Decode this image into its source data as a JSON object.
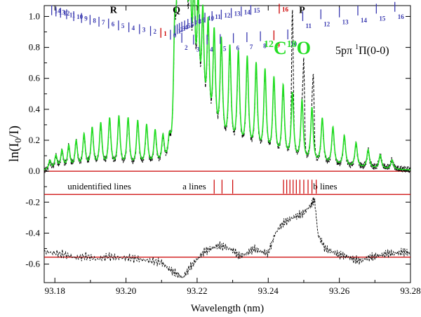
{
  "chart_data": {
    "type": "line",
    "title": "12C18O 5pπ 1Π(0-0)",
    "title_parts": {
      "isotope_c_mass": "12",
      "isotope_c": "C",
      "isotope_o_mass": "18",
      "isotope_o": "O",
      "transition": "5pπ",
      "multiplicity": "1",
      "state": "Π(0-0)"
    },
    "xlabel": "Wavelength (nm)",
    "ylabel_parts": {
      "ln": "ln(I",
      "sub0": "0",
      "slash": "/I)"
    },
    "xlim": [
      93.177,
      93.28
    ],
    "ylim": [
      -0.72,
      1.07
    ],
    "x_ticks": [
      93.18,
      93.2,
      93.22,
      93.24,
      93.26,
      93.28
    ],
    "x_tick_labels": [
      "93.18",
      "93.20",
      "93.22",
      "93.24",
      "93.26",
      "93.28"
    ],
    "y_ticks": [
      -0.6,
      -0.4,
      -0.2,
      0.0,
      0.2,
      0.4,
      0.6,
      0.8,
      1.0
    ],
    "y_tick_labels": [
      "-0.6",
      "-0.4",
      "-0.2",
      "0.0",
      "0.2",
      "0.4",
      "0.6",
      "0.8",
      "1.0"
    ],
    "reference_lines": [
      {
        "name": "zero",
        "y": 0.0,
        "color": "#cc0000"
      },
      {
        "name": "residual-baseline-top",
        "y": -0.15,
        "color": "#cc0000"
      },
      {
        "name": "residual-baseline",
        "y": -0.555,
        "color": "#cc0000"
      }
    ],
    "branches": [
      {
        "label": "R",
        "x": 93.1965,
        "y": 1.045
      },
      {
        "label": "Q",
        "x": 93.2142,
        "y": 1.045
      },
      {
        "label": "P",
        "x": 93.2495,
        "y": 1.045
      }
    ],
    "r_branch_ticks": [
      {
        "J": "14",
        "x": 93.1791,
        "y": 1.04,
        "color": "#3a3ab0"
      },
      {
        "J": "13",
        "x": 93.1803,
        "y": 1.032,
        "color": "#3a3ab0"
      },
      {
        "J": "12",
        "x": 93.1816,
        "y": 1.024,
        "color": "#3a3ab0"
      },
      {
        "J": "11",
        "x": 93.1833,
        "y": 1.014,
        "color": "#3a3ab0"
      },
      {
        "J": "10",
        "x": 93.1853,
        "y": 1.002,
        "color": "#3a3ab0"
      },
      {
        "J": "9",
        "x": 93.1875,
        "y": 0.99,
        "color": "#3a3ab0"
      },
      {
        "J": "8",
        "x": 93.1899,
        "y": 0.978,
        "color": "#3a3ab0"
      },
      {
        "J": "7",
        "x": 93.1924,
        "y": 0.966,
        "color": "#3a3ab0"
      },
      {
        "J": "6",
        "x": 93.1951,
        "y": 0.954,
        "color": "#3a3ab0"
      },
      {
        "J": "5",
        "x": 93.1979,
        "y": 0.942,
        "color": "#3a3ab0"
      },
      {
        "J": "4",
        "x": 93.2008,
        "y": 0.93,
        "color": "#3a3ab0"
      },
      {
        "J": "3",
        "x": 93.2038,
        "y": 0.918,
        "color": "#3a3ab0"
      },
      {
        "J": "2",
        "x": 93.2069,
        "y": 0.906,
        "color": "#3a3ab0"
      },
      {
        "J": "1",
        "x": 93.2098,
        "y": 0.894,
        "color": "#cc0000"
      },
      {
        "J": "0",
        "x": 93.2125,
        "y": 0.882,
        "color": "#3a3ab0"
      }
    ],
    "q_branch_ticks": [
      {
        "J": "1",
        "x": 93.2138,
        "y": 0.91,
        "color": "#3a3ab0"
      },
      {
        "J": "2",
        "x": 93.2144,
        "y": 0.918,
        "color": "#3a3ab0"
      },
      {
        "J": "3",
        "x": 93.215,
        "y": 0.926,
        "color": "#3a3ab0"
      },
      {
        "J": "4",
        "x": 93.2157,
        "y": 0.934,
        "color": "#3a3ab0"
      },
      {
        "J": "5",
        "x": 93.2165,
        "y": 0.942,
        "color": "#3a3ab0"
      },
      {
        "J": "6",
        "x": 93.2174,
        "y": 0.952,
        "color": "#3a3ab0"
      },
      {
        "J": "7",
        "x": 93.2184,
        "y": 0.962,
        "color": "#3a3ab0"
      },
      {
        "J": "8",
        "x": 93.2195,
        "y": 0.972,
        "color": "#3a3ab0"
      },
      {
        "J": "9",
        "x": 93.2207,
        "y": 0.982,
        "color": "#3a3ab0"
      },
      {
        "J": "10",
        "x": 93.2222,
        "y": 0.992,
        "color": "#3a3ab0"
      },
      {
        "J": "11",
        "x": 93.2242,
        "y": 1.002,
        "color": "#3a3ab0"
      },
      {
        "J": "12",
        "x": 93.2268,
        "y": 1.012,
        "color": "#3a3ab0"
      },
      {
        "J": "13",
        "x": 93.2296,
        "y": 1.022,
        "color": "#3a3ab0"
      },
      {
        "J": "14",
        "x": 93.2324,
        "y": 1.032,
        "color": "#3a3ab0"
      },
      {
        "J": "15",
        "x": 93.2351,
        "y": 1.042,
        "color": "#3a3ab0"
      },
      {
        "J": "16",
        "x": 93.2431,
        "y": 1.05,
        "color": "#cc0000"
      }
    ],
    "p_branch_ticks": [
      {
        "J": "2",
        "x": 93.2157,
        "y": 0.862,
        "color": "#3a3ab0"
      },
      {
        "J": "3",
        "x": 93.219,
        "y": 0.85,
        "color": "#3a3ab0"
      },
      {
        "J": "4",
        "x": 93.2228,
        "y": 0.85,
        "color": "#3a3ab0"
      },
      {
        "J": "5",
        "x": 93.2265,
        "y": 0.854,
        "color": "#3a3ab0"
      },
      {
        "J": "6",
        "x": 93.2302,
        "y": 0.86,
        "color": "#3a3ab0"
      },
      {
        "J": "7",
        "x": 93.234,
        "y": 0.866,
        "color": "#3a3ab0"
      },
      {
        "J": "8",
        "x": 93.2378,
        "y": 0.872,
        "color": "#3a3ab0"
      },
      {
        "J": "9",
        "x": 93.2416,
        "y": 0.878,
        "color": "#cc0000"
      },
      {
        "J": "10",
        "x": 93.2455,
        "y": 0.884,
        "color": "#3a3ab0"
      },
      {
        "J": "11",
        "x": 93.2497,
        "y": 1.002,
        "color": "#3a3ab0"
      },
      {
        "J": "12",
        "x": 93.2548,
        "y": 1.014,
        "color": "#3a3ab0"
      },
      {
        "J": "13",
        "x": 93.26,
        "y": 1.026,
        "color": "#3a3ab0"
      },
      {
        "J": "14",
        "x": 93.2652,
        "y": 1.038,
        "color": "#3a3ab0"
      },
      {
        "J": "15",
        "x": 93.2704,
        "y": 1.05,
        "color": "#3a3ab0"
      },
      {
        "J": "16",
        "x": 93.2756,
        "y": 1.062,
        "color": "#3a3ab0"
      }
    ],
    "marker_groups": [
      {
        "label": "unidentified lines",
        "label_x": 93.1925,
        "label_y": -0.1
      },
      {
        "label": "a lines",
        "label_x": 93.2192,
        "label_y": -0.1,
        "x": [
          93.2248,
          93.227,
          93.23
        ]
      },
      {
        "label": "b lines",
        "label_x": 93.256,
        "label_y": -0.1,
        "x": [
          93.2443,
          93.2452,
          93.2461,
          93.247,
          93.2479,
          93.2489,
          93.25,
          93.2512,
          93.2523,
          93.2535
        ]
      }
    ],
    "series": [
      {
        "name": "model fit",
        "color": "#22dd22",
        "peaks": [
          {
            "x": 93.1786,
            "a": 0.06
          },
          {
            "x": 93.1803,
            "a": 0.09
          },
          {
            "x": 93.182,
            "a": 0.12
          },
          {
            "x": 93.1839,
            "a": 0.15
          },
          {
            "x": 93.186,
            "a": 0.18
          },
          {
            "x": 93.1882,
            "a": 0.22
          },
          {
            "x": 93.1905,
            "a": 0.26
          },
          {
            "x": 93.1929,
            "a": 0.29
          },
          {
            "x": 93.1954,
            "a": 0.32
          },
          {
            "x": 93.198,
            "a": 0.33
          },
          {
            "x": 93.2006,
            "a": 0.32
          },
          {
            "x": 93.2033,
            "a": 0.3
          },
          {
            "x": 93.2058,
            "a": 0.27
          },
          {
            "x": 93.2082,
            "a": 0.23
          },
          {
            "x": 93.2104,
            "a": 0.18
          },
          {
            "x": 93.2122,
            "a": 0.13
          },
          {
            "x": 93.2137,
            "a": 0.58
          },
          {
            "x": 93.2145,
            "a": 0.72
          },
          {
            "x": 93.2153,
            "a": 0.82
          },
          {
            "x": 93.2161,
            "a": 0.86
          },
          {
            "x": 93.217,
            "a": 0.88
          },
          {
            "x": 93.218,
            "a": 0.86
          },
          {
            "x": 93.2191,
            "a": 0.82
          },
          {
            "x": 93.2203,
            "a": 0.78
          },
          {
            "x": 93.2216,
            "a": 0.74
          },
          {
            "x": 93.2231,
            "a": 0.72
          },
          {
            "x": 93.2248,
            "a": 0.7
          },
          {
            "x": 93.2268,
            "a": 0.68
          },
          {
            "x": 93.2292,
            "a": 0.66
          },
          {
            "x": 93.2316,
            "a": 0.64
          },
          {
            "x": 93.2341,
            "a": 0.62
          },
          {
            "x": 93.2366,
            "a": 0.59
          },
          {
            "x": 93.2391,
            "a": 0.56
          },
          {
            "x": 93.2416,
            "a": 0.52
          },
          {
            "x": 93.2442,
            "a": 0.48
          },
          {
            "x": 93.2468,
            "a": 0.44
          },
          {
            "x": 93.2495,
            "a": 0.4
          },
          {
            "x": 93.2523,
            "a": 0.36
          },
          {
            "x": 93.2552,
            "a": 0.3
          },
          {
            "x": 93.2582,
            "a": 0.25
          },
          {
            "x": 93.2614,
            "a": 0.2
          },
          {
            "x": 93.2647,
            "a": 0.16
          },
          {
            "x": 93.2681,
            "a": 0.12
          },
          {
            "x": 93.2715,
            "a": 0.09
          },
          {
            "x": 93.2748,
            "a": 0.06
          }
        ],
        "peak_width_nm": 0.00042
      },
      {
        "name": "measured spectrum",
        "color": "#000000",
        "style": "dashed",
        "follows": "model fit",
        "extra_peaks": [
          {
            "x": 93.2468,
            "a": 0.62
          },
          {
            "x": 93.25,
            "a": 0.55
          },
          {
            "x": 93.2527,
            "a": 0.42
          }
        ]
      },
      {
        "name": "residual",
        "color": "#000000",
        "style": "dashed",
        "baseline": -0.555,
        "points": [
          [
            93.177,
            -0.52
          ],
          [
            93.18,
            -0.53
          ],
          [
            93.183,
            -0.54
          ],
          [
            93.186,
            -0.56
          ],
          [
            93.189,
            -0.55
          ],
          [
            93.192,
            -0.57
          ],
          [
            93.195,
            -0.55
          ],
          [
            93.198,
            -0.56
          ],
          [
            93.201,
            -0.56
          ],
          [
            93.204,
            -0.57
          ],
          [
            93.207,
            -0.58
          ],
          [
            93.21,
            -0.59
          ],
          [
            93.212,
            -0.63
          ],
          [
            93.214,
            -0.66
          ],
          [
            93.216,
            -0.69
          ],
          [
            93.218,
            -0.62
          ],
          [
            93.22,
            -0.57
          ],
          [
            93.222,
            -0.52
          ],
          [
            93.224,
            -0.5
          ],
          [
            93.226,
            -0.48
          ],
          [
            93.228,
            -0.49
          ],
          [
            93.23,
            -0.51
          ],
          [
            93.232,
            -0.55
          ],
          [
            93.234,
            -0.53
          ],
          [
            93.236,
            -0.5
          ],
          [
            93.238,
            -0.52
          ],
          [
            93.24,
            -0.53
          ],
          [
            93.242,
            -0.4
          ],
          [
            93.244,
            -0.34
          ],
          [
            93.246,
            -0.31
          ],
          [
            93.248,
            -0.29
          ],
          [
            93.25,
            -0.27
          ],
          [
            93.252,
            -0.22
          ],
          [
            93.253,
            -0.18
          ],
          [
            93.254,
            -0.41
          ],
          [
            93.256,
            -0.5
          ],
          [
            93.258,
            -0.52
          ],
          [
            93.26,
            -0.54
          ],
          [
            93.262,
            -0.55
          ],
          [
            93.264,
            -0.57
          ],
          [
            93.266,
            -0.58
          ],
          [
            93.268,
            -0.56
          ],
          [
            93.27,
            -0.55
          ],
          [
            93.272,
            -0.54
          ],
          [
            93.274,
            -0.53
          ],
          [
            93.276,
            -0.53
          ],
          [
            93.278,
            -0.52
          ],
          [
            93.28,
            -0.53
          ]
        ]
      }
    ]
  }
}
